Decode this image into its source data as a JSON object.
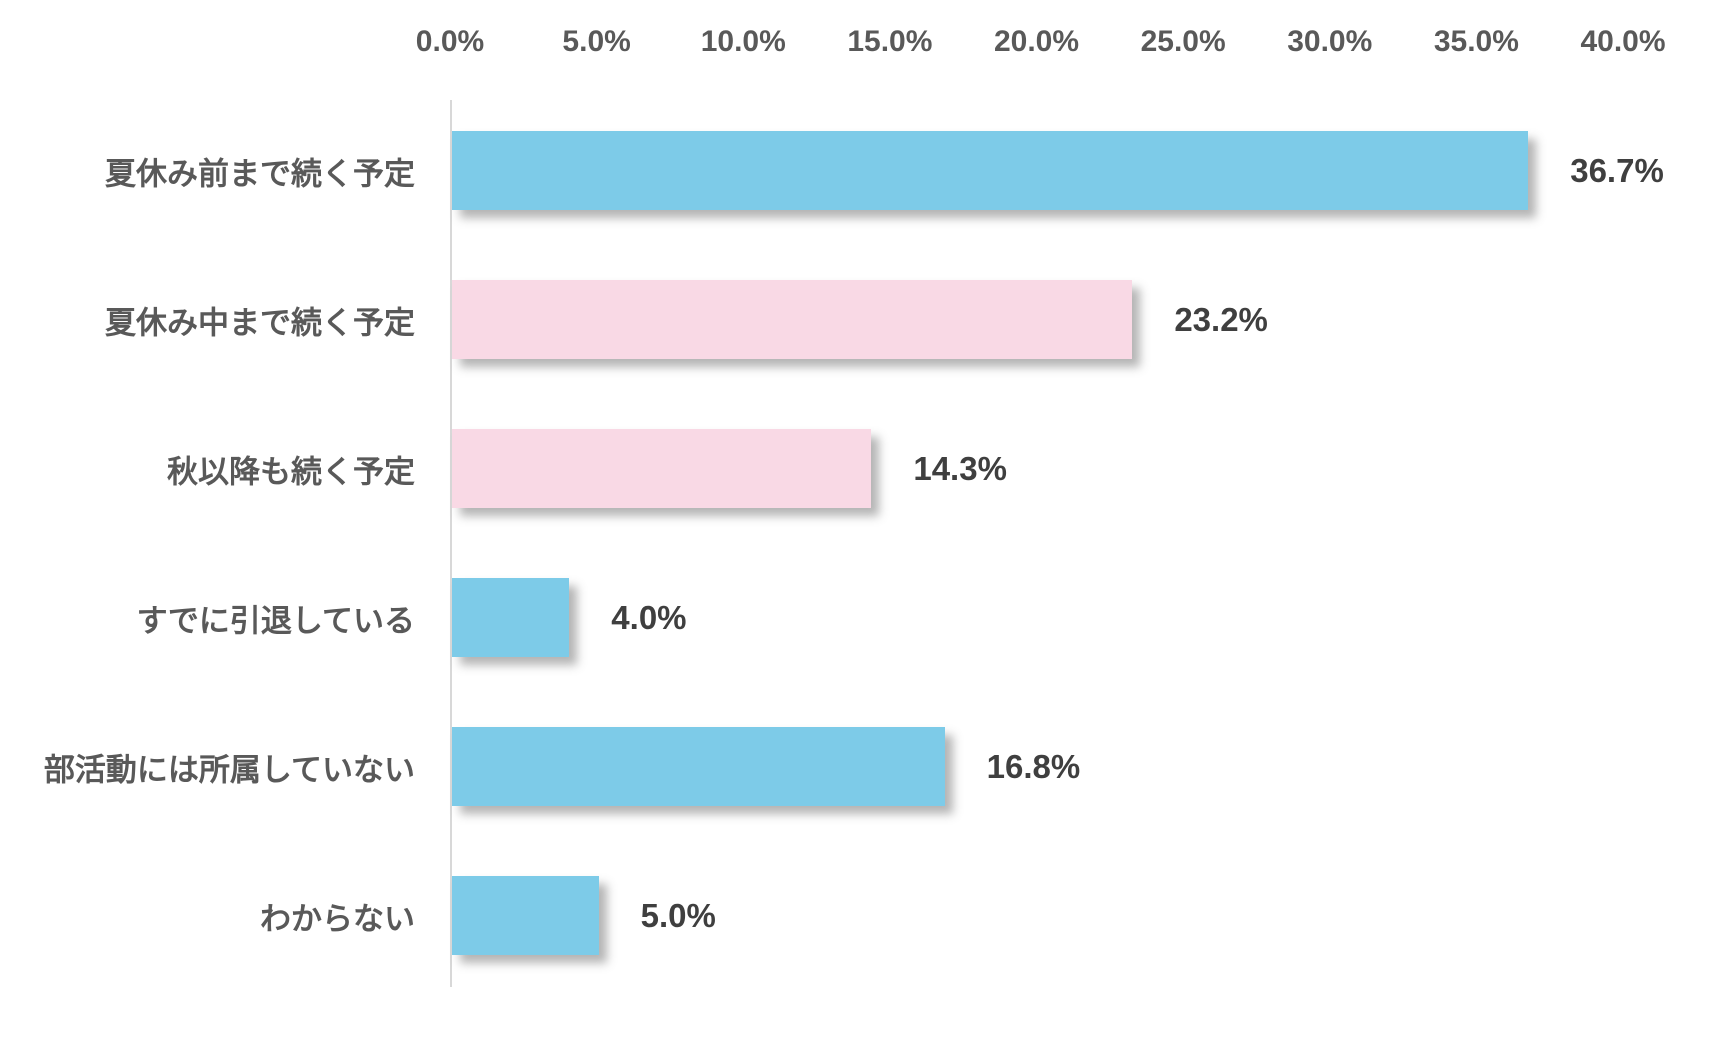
{
  "chart_data": {
    "type": "bar",
    "orientation": "horizontal",
    "title": "",
    "categories": [
      "夏休み前まで続く予定",
      "夏休み中まで続く予定",
      "秋以降も続く予定",
      "すでに引退している",
      "部活動には所属していない",
      "わからない"
    ],
    "values": [
      36.7,
      23.2,
      14.3,
      4.0,
      16.8,
      5.0
    ],
    "value_labels": [
      "36.7%",
      "23.2%",
      "14.3%",
      "4.0%",
      "16.8%",
      "5.0%"
    ],
    "bar_colors": [
      "#7dcbe8",
      "#f9d9e5",
      "#f9d9e5",
      "#7dcbe8",
      "#7dcbe8",
      "#7dcbe8"
    ],
    "x_ticks": [
      "0.0%",
      "5.0%",
      "10.0%",
      "15.0%",
      "20.0%",
      "25.0%",
      "30.0%",
      "35.0%",
      "40.0%"
    ],
    "xlim": [
      0,
      40
    ],
    "xlabel": "",
    "ylabel": "",
    "grid": false,
    "legend": false,
    "colors": {
      "blue_series": "#7dcbe8",
      "pink_series": "#f9d9e5",
      "tick_label": "#595959",
      "category_label": "#595959",
      "value_label": "#3f3f3f",
      "axis_line": "#d8d8d8",
      "background": "#ffffff"
    }
  }
}
